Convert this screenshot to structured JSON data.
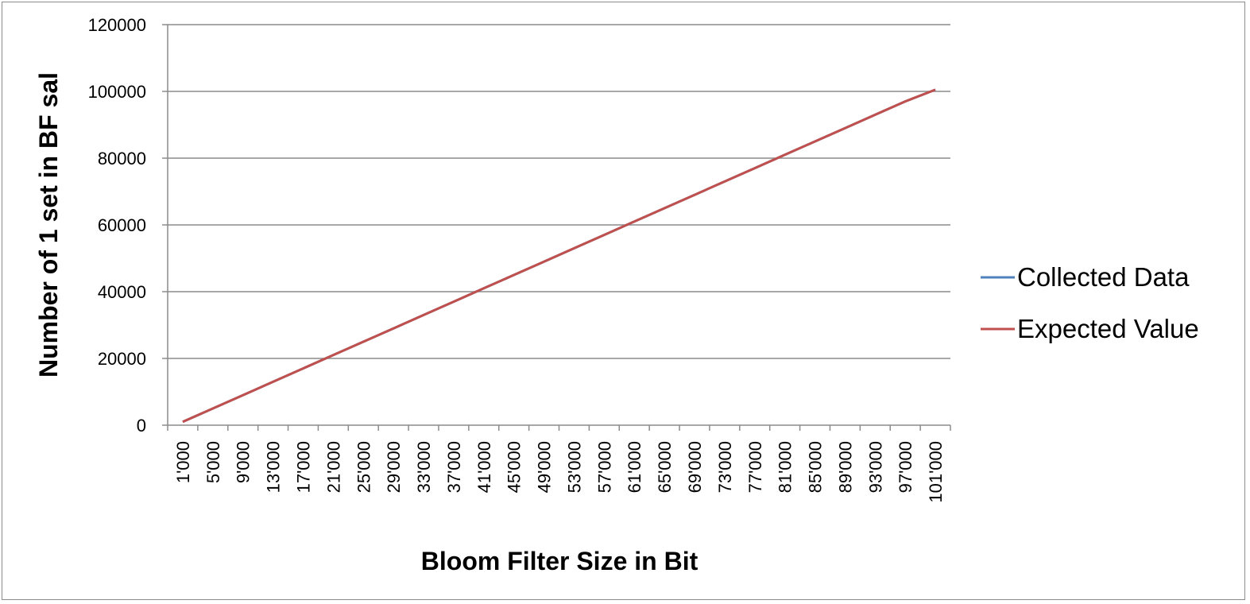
{
  "chart_data": {
    "type": "line",
    "title": "",
    "xlabel": "Bloom Filter Size in Bit",
    "ylabel": "Number of 1 set in BF sal",
    "ylim": [
      0,
      120000
    ],
    "yticks": [
      "0",
      "20000",
      "40000",
      "60000",
      "80000",
      "100000",
      "120000"
    ],
    "x_tick_labels": [
      "1'000",
      "5'000",
      "9'000",
      "13'000",
      "17'000",
      "21'000",
      "25'000",
      "29'000",
      "33'000",
      "37'000",
      "41'000",
      "45'000",
      "49'000",
      "53'000",
      "57'000",
      "61'000",
      "65'000",
      "69'000",
      "73'000",
      "77'000",
      "81'000",
      "85'000",
      "89'000",
      "93'000",
      "97'000",
      "101'000"
    ],
    "x": [
      1000,
      5000,
      9000,
      13000,
      17000,
      21000,
      25000,
      29000,
      33000,
      37000,
      41000,
      45000,
      49000,
      53000,
      57000,
      61000,
      65000,
      69000,
      73000,
      77000,
      81000,
      85000,
      89000,
      93000,
      97000,
      101000
    ],
    "grid": true,
    "legend_position": "right",
    "series": [
      {
        "name": "Collected Data",
        "color": "#4f81bd",
        "values": [
          1000,
          5000,
          9000,
          13000,
          17000,
          21000,
          25000,
          29000,
          33000,
          37000,
          41000,
          45000,
          49000,
          53000,
          57000,
          61000,
          65000,
          69000,
          73000,
          77000,
          81000,
          85000,
          89000,
          93000,
          97000,
          100500
        ]
      },
      {
        "name": "Expected Value",
        "color": "#c0504d",
        "values": [
          1000,
          5000,
          9000,
          13000,
          17000,
          21000,
          25000,
          29000,
          33000,
          37000,
          41000,
          45000,
          49000,
          53000,
          57000,
          61000,
          65000,
          69000,
          73000,
          77000,
          81000,
          85000,
          89000,
          93000,
          97000,
          100500
        ]
      }
    ]
  }
}
